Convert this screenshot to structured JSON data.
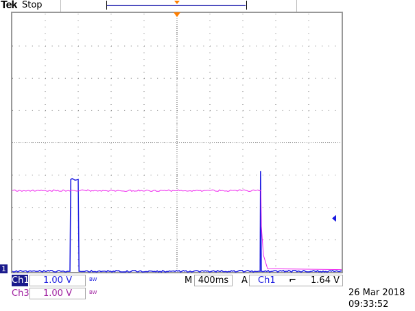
{
  "header": {
    "brand": "Tek",
    "status": "Stop"
  },
  "colors": {
    "ch1": "#1a1ae0",
    "ch3": "#ee22ee",
    "trigger": "#ff7f00",
    "grid": "#888888"
  },
  "readouts": {
    "ch1": {
      "label": "Ch1",
      "scale": "1.00 V",
      "bw": "BW"
    },
    "ch3": {
      "label": "Ch3",
      "scale": "1.00 V",
      "bw": "BW"
    },
    "timebase": {
      "prefix": "M",
      "value": "400ms"
    },
    "trigger": {
      "prefix": "A",
      "source": "Ch1",
      "slope": "falling-edge-icon",
      "slope_glyph": "⌐",
      "level": "1.64 V"
    },
    "ground_marker": "1"
  },
  "timestamp": {
    "date": "26 Mar 2018",
    "time": "09:33:52"
  },
  "chart_data": {
    "type": "line",
    "x_unit": "s",
    "y_unit": "V",
    "xlim": [
      -2,
      2
    ],
    "ylim": [
      0,
      8
    ],
    "divisions": {
      "x": 10,
      "y": 8
    },
    "grid": true,
    "trigger_level": 1.64,
    "series": [
      {
        "name": "Ch1",
        "points": [
          [
            -2,
            0
          ],
          [
            -1.3,
            0
          ],
          [
            -1.29,
            2.85
          ],
          [
            -1.2,
            2.85
          ],
          [
            -1.19,
            0
          ],
          [
            1.01,
            0
          ],
          [
            1.015,
            3.1
          ],
          [
            1.025,
            0
          ],
          [
            2,
            0
          ]
        ]
      },
      {
        "name": "Ch3",
        "points": [
          [
            -2,
            2.5
          ],
          [
            1.02,
            2.5
          ],
          [
            1.025,
            1.4
          ],
          [
            1.05,
            0.5
          ],
          [
            1.1,
            0.08
          ],
          [
            2,
            0.05
          ]
        ]
      }
    ]
  }
}
